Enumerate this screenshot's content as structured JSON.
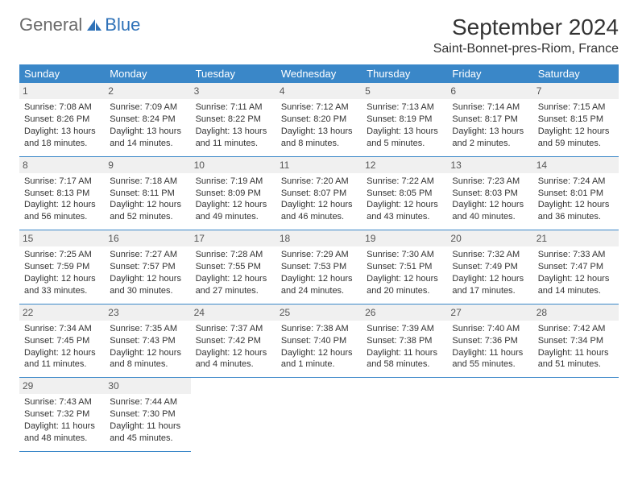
{
  "brand": {
    "text1": "General",
    "text2": "Blue"
  },
  "title": "September 2024",
  "location": "Saint-Bonnet-pres-Riom, France",
  "colors": {
    "header_bg": "#3a87c8",
    "header_text": "#ffffff",
    "daynum_bg": "#f0f0f0",
    "border": "#3a87c8",
    "brand_gray": "#6a6a6a",
    "brand_blue": "#2f72b8"
  },
  "weekdays": [
    "Sunday",
    "Monday",
    "Tuesday",
    "Wednesday",
    "Thursday",
    "Friday",
    "Saturday"
  ],
  "labels": {
    "sunrise": "Sunrise:",
    "sunset": "Sunset:",
    "daylight": "Daylight:"
  },
  "days": [
    {
      "n": 1,
      "sunrise": "7:08 AM",
      "sunset": "8:26 PM",
      "daylight": "13 hours and 18 minutes."
    },
    {
      "n": 2,
      "sunrise": "7:09 AM",
      "sunset": "8:24 PM",
      "daylight": "13 hours and 14 minutes."
    },
    {
      "n": 3,
      "sunrise": "7:11 AM",
      "sunset": "8:22 PM",
      "daylight": "13 hours and 11 minutes."
    },
    {
      "n": 4,
      "sunrise": "7:12 AM",
      "sunset": "8:20 PM",
      "daylight": "13 hours and 8 minutes."
    },
    {
      "n": 5,
      "sunrise": "7:13 AM",
      "sunset": "8:19 PM",
      "daylight": "13 hours and 5 minutes."
    },
    {
      "n": 6,
      "sunrise": "7:14 AM",
      "sunset": "8:17 PM",
      "daylight": "13 hours and 2 minutes."
    },
    {
      "n": 7,
      "sunrise": "7:15 AM",
      "sunset": "8:15 PM",
      "daylight": "12 hours and 59 minutes."
    },
    {
      "n": 8,
      "sunrise": "7:17 AM",
      "sunset": "8:13 PM",
      "daylight": "12 hours and 56 minutes."
    },
    {
      "n": 9,
      "sunrise": "7:18 AM",
      "sunset": "8:11 PM",
      "daylight": "12 hours and 52 minutes."
    },
    {
      "n": 10,
      "sunrise": "7:19 AM",
      "sunset": "8:09 PM",
      "daylight": "12 hours and 49 minutes."
    },
    {
      "n": 11,
      "sunrise": "7:20 AM",
      "sunset": "8:07 PM",
      "daylight": "12 hours and 46 minutes."
    },
    {
      "n": 12,
      "sunrise": "7:22 AM",
      "sunset": "8:05 PM",
      "daylight": "12 hours and 43 minutes."
    },
    {
      "n": 13,
      "sunrise": "7:23 AM",
      "sunset": "8:03 PM",
      "daylight": "12 hours and 40 minutes."
    },
    {
      "n": 14,
      "sunrise": "7:24 AM",
      "sunset": "8:01 PM",
      "daylight": "12 hours and 36 minutes."
    },
    {
      "n": 15,
      "sunrise": "7:25 AM",
      "sunset": "7:59 PM",
      "daylight": "12 hours and 33 minutes."
    },
    {
      "n": 16,
      "sunrise": "7:27 AM",
      "sunset": "7:57 PM",
      "daylight": "12 hours and 30 minutes."
    },
    {
      "n": 17,
      "sunrise": "7:28 AM",
      "sunset": "7:55 PM",
      "daylight": "12 hours and 27 minutes."
    },
    {
      "n": 18,
      "sunrise": "7:29 AM",
      "sunset": "7:53 PM",
      "daylight": "12 hours and 24 minutes."
    },
    {
      "n": 19,
      "sunrise": "7:30 AM",
      "sunset": "7:51 PM",
      "daylight": "12 hours and 20 minutes."
    },
    {
      "n": 20,
      "sunrise": "7:32 AM",
      "sunset": "7:49 PM",
      "daylight": "12 hours and 17 minutes."
    },
    {
      "n": 21,
      "sunrise": "7:33 AM",
      "sunset": "7:47 PM",
      "daylight": "12 hours and 14 minutes."
    },
    {
      "n": 22,
      "sunrise": "7:34 AM",
      "sunset": "7:45 PM",
      "daylight": "12 hours and 11 minutes."
    },
    {
      "n": 23,
      "sunrise": "7:35 AM",
      "sunset": "7:43 PM",
      "daylight": "12 hours and 8 minutes."
    },
    {
      "n": 24,
      "sunrise": "7:37 AM",
      "sunset": "7:42 PM",
      "daylight": "12 hours and 4 minutes."
    },
    {
      "n": 25,
      "sunrise": "7:38 AM",
      "sunset": "7:40 PM",
      "daylight": "12 hours and 1 minute."
    },
    {
      "n": 26,
      "sunrise": "7:39 AM",
      "sunset": "7:38 PM",
      "daylight": "11 hours and 58 minutes."
    },
    {
      "n": 27,
      "sunrise": "7:40 AM",
      "sunset": "7:36 PM",
      "daylight": "11 hours and 55 minutes."
    },
    {
      "n": 28,
      "sunrise": "7:42 AM",
      "sunset": "7:34 PM",
      "daylight": "11 hours and 51 minutes."
    },
    {
      "n": 29,
      "sunrise": "7:43 AM",
      "sunset": "7:32 PM",
      "daylight": "11 hours and 48 minutes."
    },
    {
      "n": 30,
      "sunrise": "7:44 AM",
      "sunset": "7:30 PM",
      "daylight": "11 hours and 45 minutes."
    }
  ]
}
